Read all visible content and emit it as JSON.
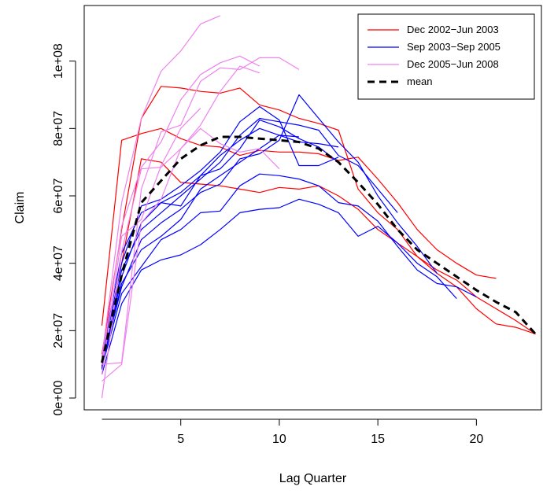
{
  "chart_data": {
    "type": "line",
    "xlabel": "Lag Quarter",
    "ylabel": "Claim",
    "xlim": [
      0.1,
      23.3
    ],
    "ylim": [
      -3500000,
      116500000
    ],
    "x_ticks": [
      5,
      10,
      15,
      20
    ],
    "x_tick_labels": [
      "5",
      "10",
      "15",
      "20"
    ],
    "y_ticks": [
      0,
      20000000,
      40000000,
      60000000,
      80000000,
      100000000
    ],
    "y_tick_labels": [
      "0e+00",
      "2e+07",
      "4e+07",
      "6e+07",
      "8e+07",
      "1e+08"
    ],
    "grid": false,
    "legend_position": "top-right",
    "legend": [
      {
        "label": "Dec 2002−Jun 2003",
        "color": "#ff0000",
        "dashed": false
      },
      {
        "label": "Sep 2003−Sep 2005",
        "color": "#0000ff",
        "dashed": false
      },
      {
        "label": "Dec 2005−Jun 2008",
        "color": "#ee82ee",
        "dashed": false
      },
      {
        "label": "mean",
        "color": "#000000",
        "dashed": true
      }
    ],
    "series": [
      {
        "group": "Dec 2002−Jun 2003",
        "color": "#ff0000",
        "values": [
          21500000,
          76500000,
          78500000,
          80000000,
          77000000,
          75000000,
          74500000,
          72000000,
          73500000,
          73000000,
          73000000,
          72500000,
          70500000,
          71500000,
          65000000,
          58000000,
          50000000,
          44000000,
          40000000,
          36500000,
          35500000
        ]
      },
      {
        "group": "Dec 2002−Jun 2003",
        "color": "#ff0000",
        "values": [
          13000000,
          50000000,
          83000000,
          92500000,
          92000000,
          91000000,
          90500000,
          92000000,
          87000000,
          85500000,
          83000000,
          81500000,
          79500000,
          62000000,
          55000000,
          50000000,
          42000000,
          38000000,
          35000000,
          30000000,
          26500000,
          23000000,
          19000000
        ]
      },
      {
        "group": "Dec 2002−Jun 2003",
        "color": "#ff0000",
        "values": [
          11000000,
          40000000,
          71000000,
          70000000,
          64000000,
          63500000,
          63000000,
          62000000,
          61000000,
          62500000,
          62000000,
          63000000,
          60000000,
          56000000,
          50000000,
          46000000,
          42000000,
          37000000,
          33000000,
          26500000,
          22000000,
          21000000,
          19000000
        ]
      },
      {
        "group": "Sep 2003−Sep 2005",
        "color": "#0000ff",
        "values": [
          7000000,
          28000000,
          38000000,
          41000000,
          42500000,
          45500000,
          50000000,
          55000000,
          56000000,
          56500000,
          59000000,
          57500000,
          55000000,
          48000000,
          51000000,
          46000000,
          40000000,
          36000000,
          29500000
        ]
      },
      {
        "group": "Sep 2003−Sep 2005",
        "color": "#0000ff",
        "values": [
          9000000,
          31000000,
          39000000,
          47000000,
          50000000,
          55000000,
          55500000,
          63000000,
          66500000,
          66000000,
          65000000,
          63000000,
          58000000,
          57000000,
          52500000,
          45000000,
          38000000,
          34000000,
          33000000,
          30000000
        ]
      },
      {
        "group": "Sep 2003−Sep 2005",
        "color": "#0000ff",
        "values": [
          10000000,
          33000000,
          47000000,
          52000000,
          56000000,
          61000000,
          63500000,
          71000000,
          72500000,
          76500000,
          90000000,
          83000000,
          76000000,
          70000000,
          60000000,
          52000000,
          45000000,
          37000000
        ]
      },
      {
        "group": "Sep 2003−Sep 2005",
        "color": "#0000ff",
        "values": [
          8500000,
          38000000,
          50000000,
          55000000,
          60000000,
          65000000,
          70000000,
          78000000,
          83000000,
          82000000,
          81000000,
          79500000,
          72000000,
          69000000,
          62000000,
          55000000
        ]
      },
      {
        "group": "Sep 2003−Sep 2005",
        "color": "#0000ff",
        "values": [
          12000000,
          43000000,
          55000000,
          58000000,
          61000000,
          66000000,
          68000000,
          74000000,
          82500000,
          80500000,
          77000000,
          74500000,
          70000000
        ]
      },
      {
        "group": "Sep 2003−Sep 2005",
        "color": "#0000ff",
        "values": [
          9000000,
          36000000,
          52000000,
          58000000,
          57000000,
          66000000,
          72000000,
          76500000,
          80000000,
          78000000,
          76000000,
          75500000,
          74500000
        ]
      },
      {
        "group": "Sep 2003−Sep 2005",
        "color": "#0000ff",
        "values": [
          11000000,
          40000000,
          57000000,
          59000000,
          63000000,
          67500000,
          73000000,
          82000000,
          86500000,
          82500000,
          69000000,
          69000000,
          71500000
        ]
      },
      {
        "group": "Sep 2003−Sep 2005",
        "color": "#0000ff",
        "values": [
          9500000,
          34000000,
          44000000,
          48000000,
          53000000,
          62000000,
          66000000,
          70000000,
          74000000,
          78000000,
          77500000
        ]
      },
      {
        "group": "Dec 2005−Jun 2008",
        "color": "#ee82ee",
        "values": [
          12000000,
          58000000,
          83000000,
          97000000,
          103000000,
          111000000,
          113500000
        ]
      },
      {
        "group": "Dec 2005−Jun 2008",
        "color": "#ee82ee",
        "values": [
          10000000,
          51000000,
          68500000,
          76000000,
          88500000,
          96000000,
          99500000,
          101500000,
          98500000
        ]
      },
      {
        "group": "Dec 2005−Jun 2008",
        "color": "#ee82ee",
        "values": [
          10000000,
          10500000,
          62000000,
          79000000,
          81000000,
          94000000,
          98000000,
          97500000,
          101000000,
          101000000,
          97500000
        ]
      },
      {
        "group": "Dec 2005−Jun 2008",
        "color": "#ee82ee",
        "values": [
          7000000,
          48000000,
          53000000,
          69000000,
          80000000,
          86000000
        ]
      },
      {
        "group": "Dec 2005−Jun 2008",
        "color": "#ee82ee",
        "values": [
          0,
          43500000,
          68000000,
          68500000,
          74000000,
          81000000,
          91000000,
          98500000,
          96500000
        ]
      },
      {
        "group": "Dec 2005−Jun 2008",
        "color": "#ee82ee",
        "values": [
          5000000,
          10000000,
          52000000,
          59000000,
          74000000,
          80000000,
          75500000,
          73000000,
          74000000,
          68000000
        ]
      },
      {
        "group": "mean",
        "color": "#000000",
        "dashed": true,
        "values": [
          10500000,
          36500000,
          58000000,
          64500000,
          71000000,
          75000000,
          77500000,
          77500000,
          77000000,
          76500000,
          76000000,
          74000000,
          70000000,
          64000000,
          57500000,
          50000000,
          44000000,
          40000000,
          36000000,
          32000000,
          28500000,
          25500000,
          19000000
        ]
      }
    ]
  }
}
